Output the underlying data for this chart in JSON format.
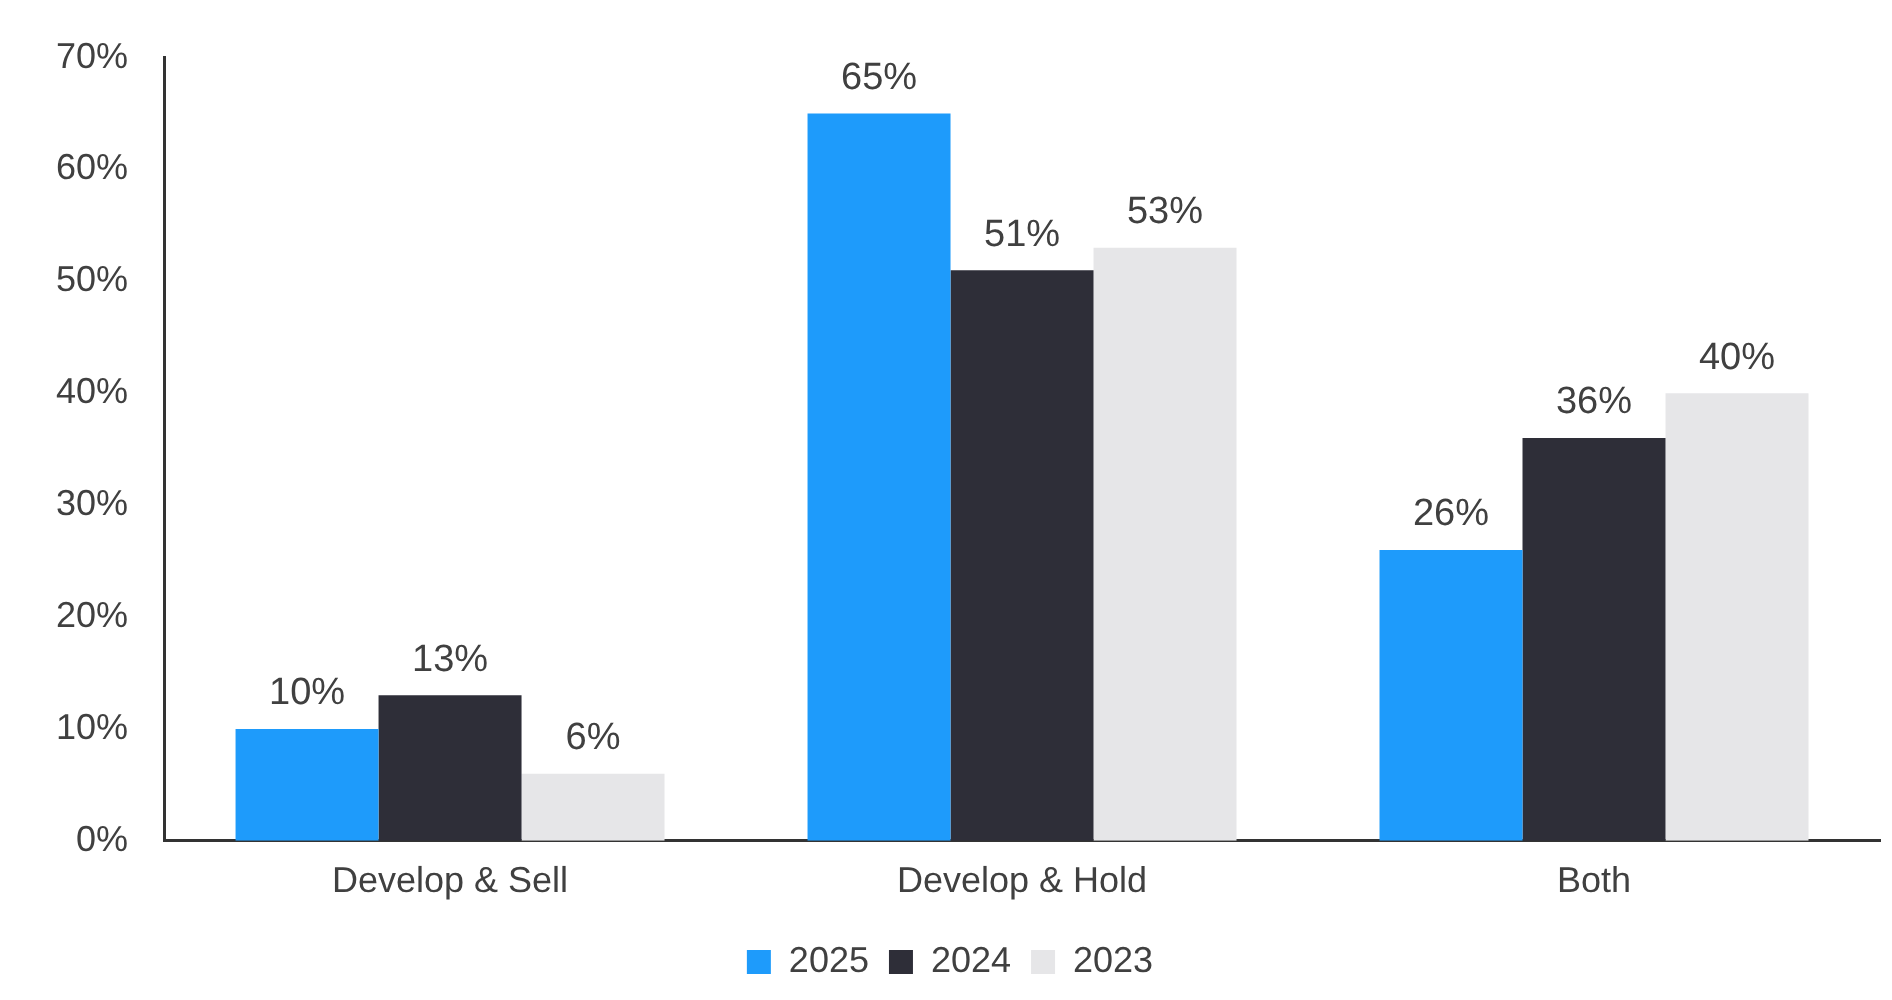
{
  "chart_data": {
    "type": "bar",
    "categories": [
      "Develop & Sell",
      "Develop & Hold",
      "Both"
    ],
    "series": [
      {
        "name": "2025",
        "color": "#1e9bfb",
        "values": [
          10,
          65,
          26
        ],
        "value_labels": [
          "10%",
          "65%",
          "26%"
        ]
      },
      {
        "name": "2024",
        "color": "#2e2e38",
        "values": [
          13,
          51,
          36
        ],
        "value_labels": [
          "13%",
          "51%",
          "36%"
        ]
      },
      {
        "name": "2023",
        "color": "#e6e6e8",
        "values": [
          6,
          53,
          40
        ],
        "value_labels": [
          "6%",
          "53%",
          "40%"
        ]
      }
    ],
    "ylim": [
      0,
      70
    ],
    "yticks": [
      {
        "value": 0,
        "label": "0%"
      },
      {
        "value": 10,
        "label": "10%"
      },
      {
        "value": 20,
        "label": "20%"
      },
      {
        "value": 30,
        "label": "30%"
      },
      {
        "value": 40,
        "label": "40%"
      },
      {
        "value": 50,
        "label": "50%"
      },
      {
        "value": 60,
        "label": "60%"
      },
      {
        "value": 70,
        "label": "70%"
      }
    ],
    "grid": false,
    "legend": "bottom"
  }
}
